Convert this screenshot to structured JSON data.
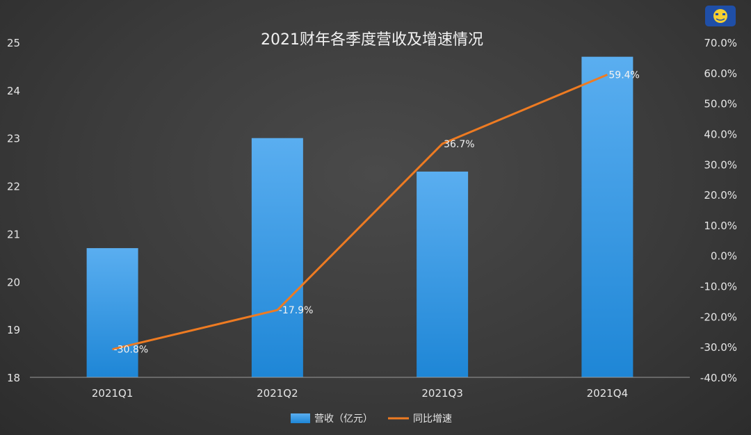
{
  "chart_data": {
    "type": "bar",
    "title": "2021财年各季度营收及增速情况",
    "categories": [
      "2021Q1",
      "2021Q2",
      "2021Q3",
      "2021Q4"
    ],
    "series": [
      {
        "name": "营收（亿元）",
        "type": "bar",
        "axis": "left",
        "values": [
          20.7,
          23.0,
          22.3,
          24.7
        ]
      },
      {
        "name": "同比增速",
        "type": "line",
        "axis": "right",
        "values": [
          -30.8,
          -17.9,
          36.7,
          59.4
        ],
        "data_labels": [
          "-30.8%",
          "-17.9%",
          "36.7%",
          "59.4%"
        ]
      }
    ],
    "ylim": [
      18,
      25
    ],
    "yticks": [
      "18",
      "19",
      "20",
      "21",
      "22",
      "23",
      "24",
      "25"
    ],
    "y2lim": [
      -40,
      70
    ],
    "y2ticks": [
      "-40.0%",
      "-30.0%",
      "-20.0%",
      "-10.0%",
      "0.0%",
      "10.0%",
      "20.0%",
      "30.0%",
      "40.0%",
      "50.0%",
      "60.0%",
      "70.0%"
    ],
    "grid": false,
    "legend_position": "bottom",
    "colors": {
      "bar": "#3a9ee4",
      "line": "#ee7b22"
    }
  },
  "logo_icon": "cartoon-face-logo"
}
